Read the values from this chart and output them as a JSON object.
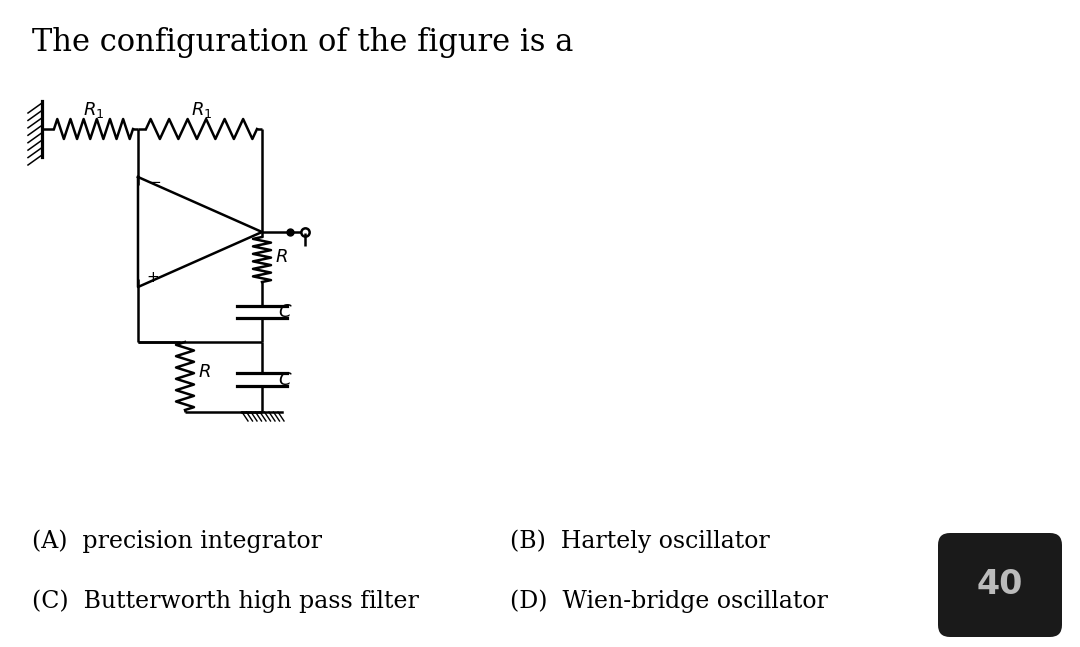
{
  "title": "The configuration of the figure is a",
  "title_fontsize": 22,
  "bg_color": "#ffffff",
  "text_color": "#000000",
  "circuit_color": "#000000",
  "badge_color": "#1a1a1a",
  "badge_text": "40",
  "badge_text_color": "#bbbbbb",
  "options": [
    [
      "(A)  precision integrator",
      "(B)  Hartely oscillator"
    ],
    [
      "(C)  Butterworth high pass filter",
      "(D)  Wien-bridge oscillator"
    ]
  ],
  "options_fontsize": 17,
  "lw": 1.8
}
